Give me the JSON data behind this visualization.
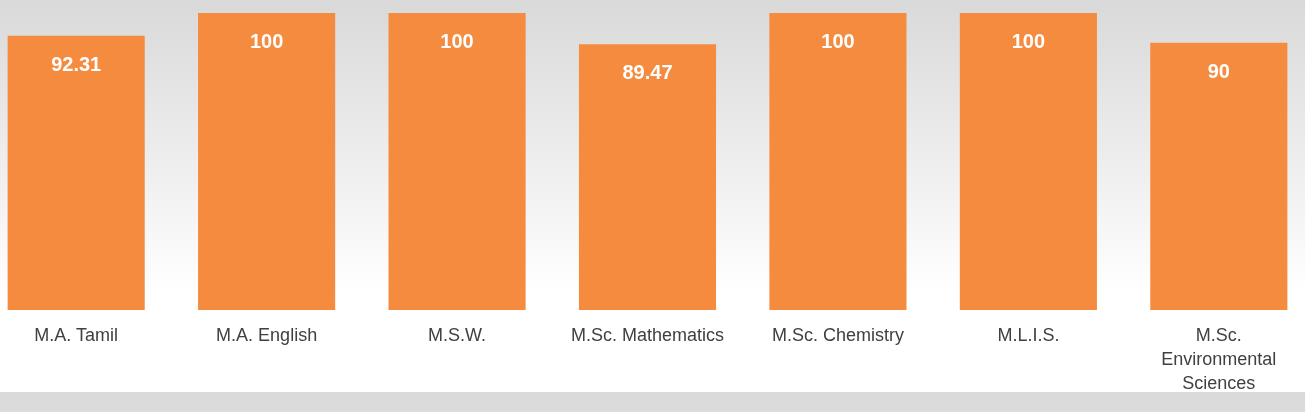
{
  "chart_data": {
    "type": "bar",
    "categories": [
      "M.A. Tamil",
      "M.A. English",
      "M.S.W.",
      "M.Sc. Mathematics",
      "M.Sc. Chemistry",
      "M.L.I.S.",
      "M.Sc. Environmental Sciences"
    ],
    "values": [
      92.31,
      100,
      100,
      89.47,
      100,
      100,
      90
    ],
    "color": "#f58b3e",
    "data_labels": true,
    "tick_labels": "x"
  }
}
